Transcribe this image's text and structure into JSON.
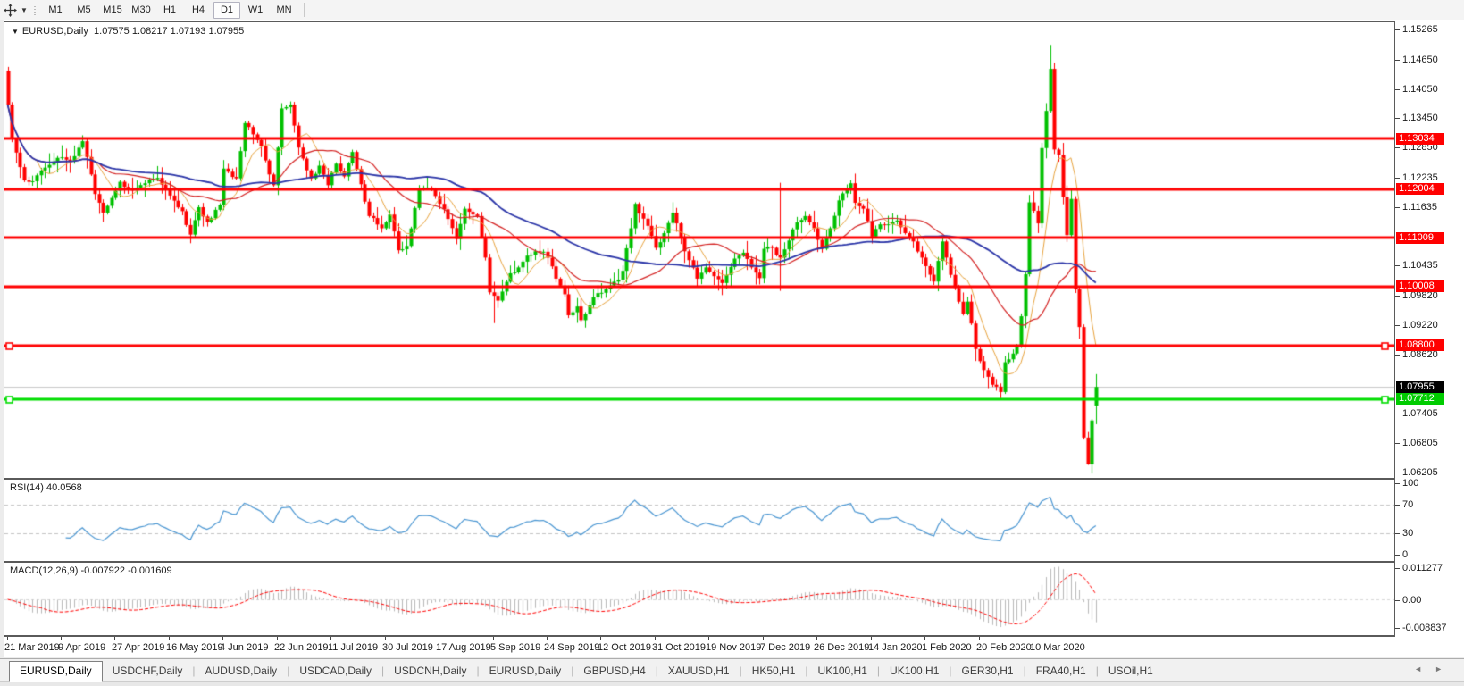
{
  "toolbar": {
    "cursor_tool_icon": "crosshair-move-icon",
    "dropdown_caret": "▼",
    "timeframes": [
      "M1",
      "M5",
      "M15",
      "M30",
      "H1",
      "H4",
      "D1",
      "W1",
      "MN"
    ],
    "active_timeframe": "D1"
  },
  "window": {
    "title_caret": "▼",
    "title_symbol": "EURUSD,Daily",
    "title_ohlc": "1.07575 1.08217 1.07193 1.07955"
  },
  "chart_data": {
    "type": "candlestick",
    "symbol": "EURUSD",
    "timeframe": "Daily",
    "last_ohlc": {
      "open": 1.07575,
      "high": 1.08217,
      "low": 1.07193,
      "close": 1.07955
    },
    "up_color": "#00c000",
    "down_color": "#ff0000",
    "num_candles": 263,
    "candles_per_x_tick": 13,
    "close_waypoints": [
      [
        0,
        1.1373
      ],
      [
        1,
        1.1302
      ],
      [
        3,
        1.1245
      ],
      [
        4,
        1.1218
      ],
      [
        6,
        1.1216
      ],
      [
        9,
        1.1244
      ],
      [
        12,
        1.1264
      ],
      [
        15,
        1.1258
      ],
      [
        18,
        1.1298
      ],
      [
        20,
        1.123
      ],
      [
        21,
        1.119
      ],
      [
        23,
        1.1152
      ],
      [
        25,
        1.1182
      ],
      [
        27,
        1.1215
      ],
      [
        30,
        1.1197
      ],
      [
        33,
        1.1212
      ],
      [
        36,
        1.1223
      ],
      [
        39,
        1.1187
      ],
      [
        42,
        1.1155
      ],
      [
        44,
        1.1107
      ],
      [
        46,
        1.1163
      ],
      [
        48,
        1.1133
      ],
      [
        51,
        1.1168
      ],
      [
        52,
        1.1242
      ],
      [
        55,
        1.1222
      ],
      [
        57,
        1.1335
      ],
      [
        59,
        1.1312
      ],
      [
        61,
        1.1288
      ],
      [
        63,
        1.123
      ],
      [
        64,
        1.1208
      ],
      [
        66,
        1.1365
      ],
      [
        68,
        1.1373
      ],
      [
        70,
        1.1285
      ],
      [
        73,
        1.1222
      ],
      [
        75,
        1.1248
      ],
      [
        77,
        1.1208
      ],
      [
        79,
        1.1252
      ],
      [
        81,
        1.1226
      ],
      [
        83,
        1.1276
      ],
      [
        85,
        1.121
      ],
      [
        87,
        1.1145
      ],
      [
        90,
        1.112
      ],
      [
        92,
        1.1148
      ],
      [
        94,
        1.1075
      ],
      [
        96,
        1.1084
      ],
      [
        99,
        1.12
      ],
      [
        102,
        1.1199
      ],
      [
        104,
        1.117
      ],
      [
        106,
        1.1139
      ],
      [
        108,
        1.1098
      ],
      [
        110,
        1.116
      ],
      [
        113,
        1.1145
      ],
      [
        115,
        1.106
      ],
      [
        116,
        1.0989
      ],
      [
        118,
        1.0972
      ],
      [
        121,
        1.1028
      ],
      [
        123,
        1.104
      ],
      [
        125,
        1.1064
      ],
      [
        127,
        1.1073
      ],
      [
        129,
        1.1072
      ],
      [
        131,
        1.1042
      ],
      [
        132,
        1.1017
      ],
      [
        134,
        1.0985
      ],
      [
        135,
        1.0942
      ],
      [
        137,
        1.096
      ],
      [
        138,
        1.0932
      ],
      [
        141,
        1.0979
      ],
      [
        143,
        1.0988
      ],
      [
        145,
        1.1003
      ],
      [
        147,
        1.1015
      ],
      [
        148,
        1.1033
      ],
      [
        150,
        1.112
      ],
      [
        151,
        1.117
      ],
      [
        152,
        1.115
      ],
      [
        154,
        1.1125
      ],
      [
        156,
        1.108
      ],
      [
        158,
        1.111
      ],
      [
        160,
        1.1152
      ],
      [
        161,
        1.113
      ],
      [
        163,
        1.1073
      ],
      [
        166,
        1.1017
      ],
      [
        168,
        1.104
      ],
      [
        170,
        1.1022
      ],
      [
        172,
        1.1008
      ],
      [
        175,
        1.1058
      ],
      [
        177,
        1.107
      ],
      [
        179,
        1.104
      ],
      [
        181,
        1.1018
      ],
      [
        182,
        1.1078
      ],
      [
        184,
        1.108
      ],
      [
        186,
        1.106
      ],
      [
        188,
        1.1095
      ],
      [
        190,
        1.1132
      ],
      [
        192,
        1.1145
      ],
      [
        194,
        1.112
      ],
      [
        196,
        1.1078
      ],
      [
        198,
        1.112
      ],
      [
        200,
        1.1177
      ],
      [
        203,
        1.1212
      ],
      [
        204,
        1.1172
      ],
      [
        206,
        1.116
      ],
      [
        208,
        1.1103
      ],
      [
        210,
        1.1128
      ],
      [
        212,
        1.1128
      ],
      [
        214,
        1.1136
      ],
      [
        216,
        1.111
      ],
      [
        218,
        1.1093
      ],
      [
        220,
        1.106
      ],
      [
        223,
        1.1011
      ],
      [
        225,
        1.1093
      ],
      [
        226,
        1.106
      ],
      [
        228,
        1.0998
      ],
      [
        230,
        1.0945
      ],
      [
        231,
        1.097
      ],
      [
        233,
        1.0873
      ],
      [
        235,
        1.083
      ],
      [
        237,
        1.08
      ],
      [
        239,
        1.0785
      ],
      [
        240,
        1.0846
      ],
      [
        241,
        1.0852
      ],
      [
        243,
        1.088
      ],
      [
        244,
        1.094
      ],
      [
        245,
        1.1026
      ],
      [
        246,
        1.1173
      ],
      [
        248,
        1.113
      ],
      [
        249,
        1.1284
      ],
      [
        250,
        1.136
      ],
      [
        251,
        1.1446
      ],
      [
        252,
        1.1281
      ],
      [
        253,
        1.127
      ],
      [
        254,
        1.1184
      ],
      [
        255,
        1.1106
      ],
      [
        256,
        1.118
      ],
      [
        257,
        1.0995
      ],
      [
        258,
        1.0918
      ],
      [
        259,
        1.0692
      ],
      [
        260,
        1.0637
      ],
      [
        261,
        1.0727
      ],
      [
        262,
        1.07955
      ]
    ],
    "candle_overrides": [
      {
        "i": 0,
        "o": 1.1442,
        "h": 1.145,
        "l": 1.1363
      },
      {
        "i": 1,
        "h": 1.1378,
        "l": 1.1296
      },
      {
        "i": 117,
        "l": 1.0926
      },
      {
        "i": 186,
        "h": 1.1213,
        "l": 1.0992
      },
      {
        "i": 251,
        "h": 1.1495
      },
      {
        "i": 260,
        "l": 1.0636
      },
      {
        "i": 262,
        "o": 1.07575,
        "h": 1.08217,
        "l": 1.07193,
        "c": 1.07955
      }
    ],
    "price_axis": {
      "min": 1.06205,
      "max": 1.15265,
      "ticks": [
        1.15265,
        1.1465,
        1.1405,
        1.1345,
        1.1285,
        1.12235,
        1.11635,
        1.10435,
        1.0982,
        1.0922,
        1.0862,
        1.07405,
        1.06805,
        1.06205
      ]
    },
    "x_axis_dates": [
      "21 Mar 2019",
      "9 Apr 2019",
      "27 Apr 2019",
      "16 May 2019",
      "4 Jun 2019",
      "22 Jun 2019",
      "11 Jul 2019",
      "30 Jul 2019",
      "17 Aug 2019",
      "5 Sep 2019",
      "24 Sep 2019",
      "12 Oct 2019",
      "31 Oct 2019",
      "19 Nov 2019",
      "7 Dec 2019",
      "26 Dec 2019",
      "14 Jan 2020",
      "1 Feb 2020",
      "20 Feb 2020",
      "10 Mar 2020"
    ],
    "horizontal_lines": [
      {
        "price": 1.13034,
        "color": "#ff0000",
        "width": 3,
        "handles": false
      },
      {
        "price": 1.12004,
        "color": "#ff0000",
        "width": 3,
        "handles": false
      },
      {
        "price": 1.11009,
        "color": "#ff0000",
        "width": 3,
        "handles": false
      },
      {
        "price": 1.10008,
        "color": "#ff0000",
        "width": 3,
        "handles": false
      },
      {
        "price": 1.088,
        "color": "#ff0000",
        "width": 3,
        "handles": true
      },
      {
        "price": 1.07712,
        "color": "#00dd00",
        "width": 3,
        "handles": true
      }
    ],
    "current_price": {
      "value": 1.07955,
      "line_color": "#c9c9c9",
      "badge_bg": "#000000"
    },
    "badges": [
      {
        "label": "1.13034",
        "price": 1.13034,
        "bg": "#ff0000",
        "fg": "#ffffff"
      },
      {
        "label": "1.12004",
        "price": 1.12004,
        "bg": "#ff0000",
        "fg": "#ffffff"
      },
      {
        "label": "1.11009",
        "price": 1.11009,
        "bg": "#ff0000",
        "fg": "#ffffff"
      },
      {
        "label": "1.10008",
        "price": 1.10008,
        "bg": "#ff0000",
        "fg": "#ffffff"
      },
      {
        "label": "1.08800",
        "price": 1.088,
        "bg": "#ff0000",
        "fg": "#ffffff"
      },
      {
        "label": "1.07955",
        "price": 1.07955,
        "bg": "#000000",
        "fg": "#ffffff"
      },
      {
        "label": "1.07712",
        "price": 1.07712,
        "bg": "#00cc00",
        "fg": "#ffffff"
      }
    ],
    "moving_averages": [
      {
        "name": "fast",
        "period": 8,
        "color": "#e8a33d",
        "line_width": 1
      },
      {
        "name": "medium",
        "period": 23,
        "color": "#d42222",
        "line_width": 1.2
      },
      {
        "name": "slow",
        "period": 50,
        "color": "#2b35a8",
        "line_width": 1.8
      }
    ]
  },
  "rsi": {
    "label": "RSI(14) 40.0568",
    "period": 14,
    "value": 40.0568,
    "levels": [
      70,
      30
    ],
    "axis_ticks": [
      100,
      70,
      30,
      0
    ],
    "line_color": "#4a96d2"
  },
  "macd": {
    "label": "MACD(12,26,9) -0.007922 -0.001609",
    "main_value": -0.007922,
    "signal_value": -0.001609,
    "axis_ticks": [
      {
        "v": 0.011277,
        "label": "0.011277"
      },
      {
        "v": 0,
        "label": "0.00"
      },
      {
        "v": -0.008837,
        "label": "-0.008837"
      }
    ],
    "hist_color": "#b9b9b9",
    "signal_color": "#ff0000"
  },
  "tabs": {
    "items": [
      "EURUSD,Daily",
      "USDCHF,Daily",
      "AUDUSD,Daily",
      "USDCAD,Daily",
      "USDCNH,Daily",
      "EURUSD,Daily",
      "GBPUSD,H4",
      "XAUUSD,H1",
      "HK50,H1",
      "UK100,H1",
      "UK100,H1",
      "GER30,H1",
      "FRA40,H1",
      "USOil,H1"
    ],
    "active_index": 0,
    "nav_left": "◄",
    "nav_right": "►"
  }
}
